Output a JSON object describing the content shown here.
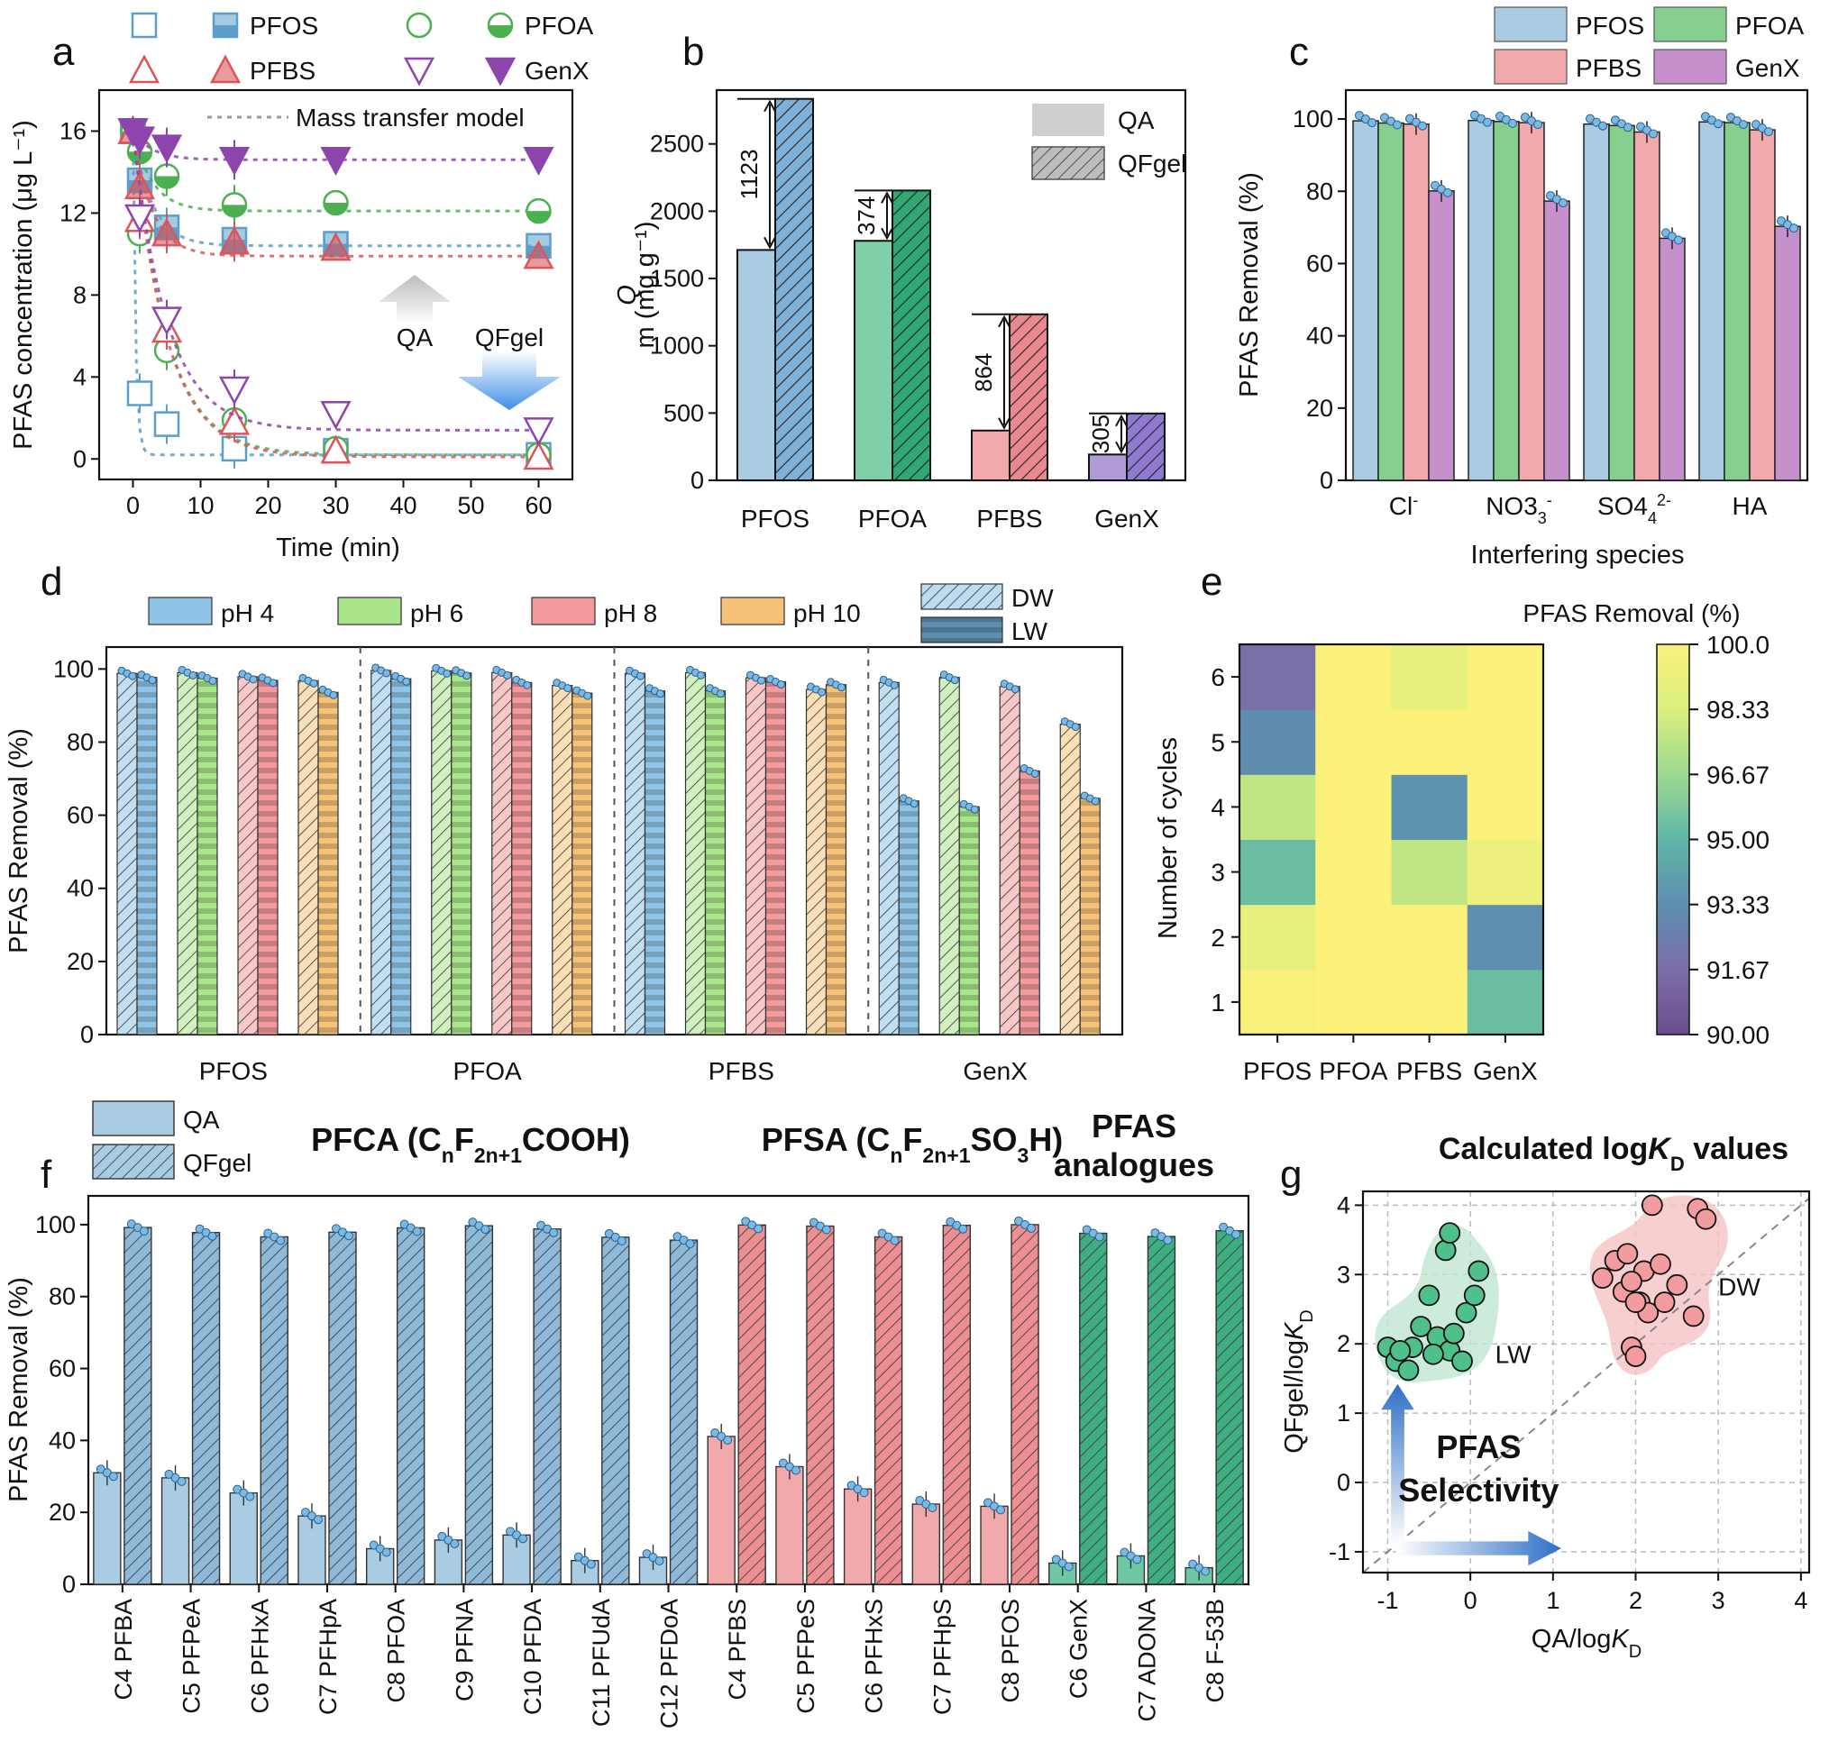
{
  "colors": {
    "blue": "#a9cce3",
    "blue_dk": "#5b9ec9",
    "green": "#7fd0a8",
    "green_dk": "#3a9e6e",
    "red": "#f2a9ab",
    "red_dk": "#d9565a",
    "purple": "#b09ad8",
    "purple_dk": "#7b3fa3",
    "pfoa_line": "#4caf50",
    "genx_line": "#8e44ad",
    "ph4": "#8fc4e6",
    "ph6": "#a9e58a",
    "ph8": "#f29a9c",
    "ph10": "#f6c27a",
    "flca": "#3b73c0",
    "fsa": "#d32f3a",
    "analog": "#2e8b3a"
  },
  "chart_data": [
    {
      "panel": "a",
      "type": "line",
      "xlabel": "Time (min)",
      "ylabel": "PFAS concentration (μg L⁻¹)",
      "xlim": [
        -5,
        65
      ],
      "ylim": [
        -1,
        18
      ],
      "xticks": [
        "0",
        "10",
        "20",
        "30",
        "40",
        "50",
        "60"
      ],
      "yticks": [
        "0",
        "4",
        "8",
        "12",
        "16"
      ],
      "legend": {
        "pfos": "PFOS",
        "pfoa": "PFOA",
        "pfbs": "PFBS",
        "genx": "GenX",
        "model": "Mass transfer model"
      },
      "annotations": {
        "qa": "QA",
        "qfgel": "QFgel"
      },
      "x": [
        0,
        1,
        5,
        15,
        30,
        60
      ],
      "series": [
        {
          "name": "PFOS",
          "adsorbent": "QA",
          "values": [
            16,
            3.2,
            1.7,
            0.5,
            0.4,
            0.2
          ]
        },
        {
          "name": "PFOS",
          "adsorbent": "QFgel",
          "values": [
            16,
            13.6,
            11.3,
            10.7,
            10.5,
            10.4
          ]
        },
        {
          "name": "PFOA",
          "adsorbent": "QA",
          "values": [
            16,
            11,
            5.3,
            1.9,
            0.5,
            0.2
          ]
        },
        {
          "name": "PFOA",
          "adsorbent": "QFgel",
          "values": [
            16,
            15,
            13.8,
            12.4,
            12.5,
            12.1
          ]
        },
        {
          "name": "PFBS",
          "adsorbent": "QA",
          "values": [
            16,
            11.7,
            6.3,
            1.8,
            0.4,
            0.1
          ]
        },
        {
          "name": "PFBS",
          "adsorbent": "QFgel",
          "values": [
            16,
            13.3,
            11,
            10.6,
            10.3,
            9.9
          ]
        },
        {
          "name": "GenX",
          "adsorbent": "QA",
          "values": [
            16,
            11.8,
            6.8,
            3.4,
            2.2,
            1.4
          ]
        },
        {
          "name": "GenX",
          "adsorbent": "QFgel",
          "values": [
            16,
            15.6,
            15.2,
            14.6,
            14.6,
            14.6
          ]
        }
      ]
    },
    {
      "panel": "b",
      "type": "bar",
      "ylabel": "Qm (mg g⁻¹)",
      "ylim": [
        0,
        2900
      ],
      "yticks": [
        "0",
        "500",
        "1000",
        "1500",
        "2000",
        "2500"
      ],
      "categories": [
        "PFOS",
        "PFOA",
        "PFBS",
        "GenX"
      ],
      "series": [
        {
          "name": "QA",
          "values": [
            1712,
            1780,
            370,
            192
          ]
        },
        {
          "name": "QFgel",
          "values": [
            2835,
            2154,
            1234,
            497
          ]
        }
      ],
      "differences": [
        "1123",
        "374",
        "864",
        "305"
      ]
    },
    {
      "panel": "c",
      "type": "bar",
      "xlabel": "Interfering species",
      "ylabel": "PFAS Removal (%)",
      "ylim": [
        0,
        108
      ],
      "yticks": [
        "0",
        "20",
        "40",
        "60",
        "80",
        "100"
      ],
      "categories": [
        "Cl",
        "NO3",
        "SO4",
        "HA"
      ],
      "category_sup": [
        "-",
        "-",
        "2-",
        ""
      ],
      "category_sub": [
        "",
        "3",
        "4",
        ""
      ],
      "series": [
        {
          "name": "PFOS",
          "values": [
            99.5,
            99.6,
            98.6,
            99.2
          ]
        },
        {
          "name": "PFOA",
          "values": [
            98.9,
            99.3,
            98.2,
            99.0
          ]
        },
        {
          "name": "PFBS",
          "values": [
            98.6,
            99.0,
            96.4,
            97.0
          ]
        },
        {
          "name": "GenX",
          "values": [
            80.1,
            77.3,
            67.0,
            70.3
          ]
        }
      ]
    },
    {
      "panel": "d",
      "type": "bar",
      "ylabel": "PFAS Removal (%)",
      "ylim": [
        0,
        106
      ],
      "yticks": [
        "0",
        "20",
        "40",
        "60",
        "80",
        "100"
      ],
      "categories": [
        "PFOS",
        "PFOA",
        "PFBS",
        "GenX"
      ],
      "ph_labels": [
        "pH 4",
        "pH 6",
        "pH 8",
        "pH 10"
      ],
      "water_labels": [
        "DW",
        "LW"
      ],
      "series": [
        {
          "name": "pH 4",
          "DW": [
            98.8,
            99.6,
            98.8,
            96.3
          ],
          "LW": [
            97.7,
            97.3,
            94.0,
            63.9
          ]
        },
        {
          "name": "pH 6",
          "DW": [
            99.0,
            99.5,
            99.0,
            97.7
          ],
          "LW": [
            97.5,
            98.9,
            94.0,
            62.3
          ]
        },
        {
          "name": "pH 8",
          "DW": [
            97.9,
            99.0,
            97.6,
            95.2
          ],
          "LW": [
            96.9,
            96.3,
            96.5,
            72.1
          ]
        },
        {
          "name": "pH 10",
          "DW": [
            96.8,
            95.5,
            94.4,
            84.9
          ],
          "LW": [
            93.6,
            93.4,
            95.7,
            64.6
          ]
        }
      ]
    },
    {
      "panel": "e",
      "type": "heatmap",
      "title": "PFAS Removal (%)",
      "ylabel": "Number of cycles",
      "columns": [
        "PFOS",
        "PFOA",
        "PFBS",
        "GenX"
      ],
      "rows": [
        "1",
        "2",
        "3",
        "4",
        "5",
        "6"
      ],
      "values": [
        [
          99.8,
          100,
          100,
          95.3
        ],
        [
          98.9,
          100,
          100,
          93.4
        ],
        [
          95.3,
          100,
          97.6,
          99.3
        ],
        [
          97.6,
          100,
          93.6,
          100
        ],
        [
          93.3,
          100,
          100,
          100
        ],
        [
          91.7,
          100,
          99.0,
          100
        ]
      ],
      "colorbar_ticks": [
        "100.0",
        "98.33",
        "96.67",
        "95.00",
        "93.33",
        "91.67",
        "90.00"
      ],
      "range": [
        90,
        100
      ]
    },
    {
      "panel": "f",
      "type": "bar",
      "ylabel": "PFAS Removal (%)",
      "ylim": [
        0,
        108
      ],
      "yticks": [
        "0",
        "20",
        "40",
        "60",
        "80",
        "100"
      ],
      "legend": [
        "QA",
        "QFgel"
      ],
      "groups": [
        {
          "title": "PFCA (CnF2n+1COOH)",
          "group": "pfca"
        },
        {
          "title": "PFSA (CnF2n+1SO3H)",
          "group": "pfsa"
        },
        {
          "title": "PFAS analogues",
          "group": "analog"
        }
      ],
      "categories": [
        "C4 PFBA",
        "C5 PFPeA",
        "C6 PFHxA",
        "C7 PFHpA",
        "C8 PFOA",
        "C9 PFNA",
        "C10 PFDA",
        "C11 PFUdA",
        "C12 PFDoA",
        "C4 PFBS",
        "C5 PFPeS",
        "C6 PFHxS",
        "C7 PFHpS",
        "C8 PFOS",
        "C6 GenX",
        "C7 ADONA",
        "C8 F-53B"
      ],
      "category_group": [
        "pfca",
        "pfca",
        "pfca",
        "pfca",
        "pfca",
        "pfca",
        "pfca",
        "pfca",
        "pfca",
        "pfsa",
        "pfsa",
        "pfsa",
        "pfsa",
        "pfsa",
        "analog",
        "analog",
        "analog"
      ],
      "series": [
        {
          "name": "QA",
          "values": [
            31,
            29.6,
            25.4,
            19.0,
            9.9,
            12.3,
            13.7,
            6.6,
            7.5,
            41.1,
            32.7,
            26.5,
            22.3,
            21.7,
            5.9,
            7.9,
            4.6
          ]
        },
        {
          "name": "QFgel",
          "values": [
            99.2,
            97.8,
            96.6,
            97.9,
            99.1,
            99.7,
            98.8,
            96.5,
            95.7,
            99.9,
            99.6,
            96.6,
            99.8,
            100.0,
            97.6,
            96.7,
            98.3
          ]
        }
      ]
    },
    {
      "panel": "g",
      "type": "scatter",
      "title": "Calculated logKD values",
      "xlabel": "QA/logKD",
      "ylabel": "QFgel/logKD",
      "xlim": [
        -1.3,
        4.1
      ],
      "ylim": [
        -1.3,
        4.2
      ],
      "xticks": [
        "-1",
        "0",
        "1",
        "2",
        "3",
        "4"
      ],
      "yticks": [
        "-1",
        "0",
        "1",
        "2",
        "3",
        "4"
      ],
      "selectivity_label": [
        "PFAS",
        "Selectivity"
      ],
      "series": [
        {
          "name": "LW",
          "x": [
            -1.0,
            -0.9,
            -0.75,
            -0.6,
            -0.5,
            -0.4,
            -0.3,
            -0.25,
            -0.25,
            -0.2,
            -0.1,
            -0.05,
            0.05,
            0.1,
            -0.7,
            -0.85,
            -0.45
          ],
          "y": [
            1.95,
            1.75,
            1.62,
            2.25,
            2.7,
            2.1,
            3.35,
            3.6,
            1.9,
            2.15,
            1.75,
            2.45,
            2.7,
            3.05,
            1.95,
            1.9,
            1.85
          ]
        },
        {
          "name": "DW",
          "x": [
            1.6,
            1.75,
            1.85,
            1.9,
            1.95,
            2.0,
            2.05,
            2.1,
            2.15,
            2.2,
            2.3,
            2.35,
            2.5,
            2.7,
            2.75,
            2.85,
            1.95,
            2.0
          ],
          "y": [
            2.95,
            3.2,
            2.75,
            3.3,
            1.95,
            1.82,
            2.6,
            3.05,
            2.45,
            4.0,
            3.15,
            2.6,
            2.85,
            2.4,
            3.95,
            3.8,
            2.9,
            2.6
          ]
        }
      ]
    }
  ],
  "panels": {
    "a": "a",
    "b": "b",
    "c": "c",
    "d": "d",
    "e": "e",
    "f": "f",
    "g": "g"
  }
}
